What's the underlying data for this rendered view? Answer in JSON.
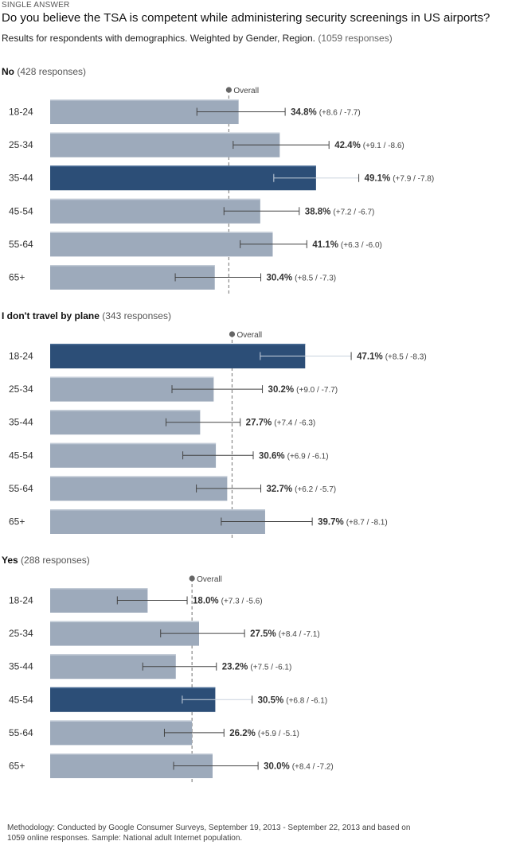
{
  "header": {
    "answer_type": "SINGLE ANSWER",
    "question": "Do you believe the TSA is competent while administering security screenings in US airports?",
    "subtitle": "Results for respondents with demographics. Weighted by Gender, Region.",
    "total_responses": "(1059 responses)"
  },
  "overall_label": "Overall",
  "footer": "Methodology: Conducted by Google Consumer Surveys, September 19, 2013 - September 22, 2013 and based on 1059 online responses. Sample: National adult Internet population.",
  "colors": {
    "bar": "#9daabb",
    "bar_highlight": "#2c4e77",
    "error": "#444444",
    "overall_line": "#888888"
  },
  "chart_data": [
    {
      "type": "bar",
      "title": "No",
      "responses": "(428 responses)",
      "overall": 33.0,
      "xlim": [
        0,
        60
      ],
      "categories": [
        "18-24",
        "25-34",
        "35-44",
        "45-54",
        "55-64",
        "65+"
      ],
      "values": [
        34.8,
        42.4,
        49.1,
        38.8,
        41.1,
        30.4
      ],
      "error_plus": [
        8.6,
        9.1,
        7.9,
        7.2,
        6.3,
        8.5
      ],
      "error_minus": [
        7.7,
        8.6,
        7.8,
        6.7,
        6.0,
        7.3
      ],
      "value_labels": [
        "34.8%",
        "42.4%",
        "49.1%",
        "38.8%",
        "41.1%",
        "30.4%"
      ],
      "error_labels": [
        "(+8.6 / -7.7)",
        "(+9.1 / -8.6)",
        "(+7.9 / -7.8)",
        "(+7.2 / -6.7)",
        "(+6.3 / -6.0)",
        "(+8.5 / -7.3)"
      ],
      "highlight": 2
    },
    {
      "type": "bar",
      "title": "I don't travel by plane",
      "responses": "(343 responses)",
      "overall": 33.6,
      "xlim": [
        0,
        60
      ],
      "categories": [
        "18-24",
        "25-34",
        "35-44",
        "45-54",
        "55-64",
        "65+"
      ],
      "values": [
        47.1,
        30.2,
        27.7,
        30.6,
        32.7,
        39.7
      ],
      "error_plus": [
        8.5,
        9.0,
        7.4,
        6.9,
        6.2,
        8.7
      ],
      "error_minus": [
        8.3,
        7.7,
        6.3,
        6.1,
        5.7,
        8.1
      ],
      "value_labels": [
        "47.1%",
        "30.2%",
        "27.7%",
        "30.6%",
        "32.7%",
        "39.7%"
      ],
      "error_labels": [
        "(+8.5 / -8.3)",
        "(+9.0 / -7.7)",
        "(+7.4 / -6.3)",
        "(+6.9 / -6.1)",
        "(+6.2 / -5.7)",
        "(+8.7 / -8.1)"
      ],
      "highlight": 0
    },
    {
      "type": "bar",
      "title": "Yes",
      "responses": "(288 responses)",
      "overall": 26.2,
      "xlim": [
        0,
        60
      ],
      "categories": [
        "18-24",
        "25-34",
        "35-44",
        "45-54",
        "55-64",
        "65+"
      ],
      "values": [
        18.0,
        27.5,
        23.2,
        30.5,
        26.2,
        30.0
      ],
      "error_plus": [
        7.3,
        8.4,
        7.5,
        6.8,
        5.9,
        8.4
      ],
      "error_minus": [
        5.6,
        7.1,
        6.1,
        6.1,
        5.1,
        7.2
      ],
      "value_labels": [
        "18.0%",
        "27.5%",
        "23.2%",
        "30.5%",
        "26.2%",
        "30.0%"
      ],
      "error_labels": [
        "(+7.3 / -5.6)",
        "(+8.4 / -7.1)",
        "(+7.5 / -6.1)",
        "(+6.8 / -6.1)",
        "(+5.9 / -5.1)",
        "(+8.4 / -7.2)"
      ],
      "highlight": 3
    }
  ]
}
